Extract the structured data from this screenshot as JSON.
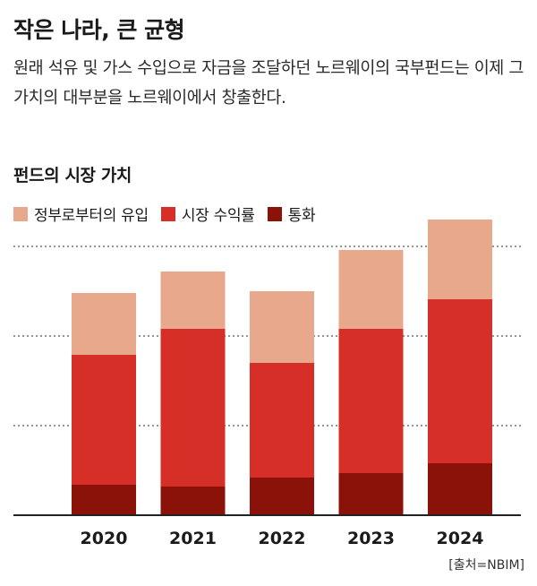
{
  "header": {
    "title": "작은 나라, 큰 균형",
    "subtitle": "원래 석유 및 가스 수입으로 자금을 조달하던 노르웨이의 국부펀드는 이제 그 가치의 대부분을 노르웨이에서 창출한다."
  },
  "chart_data": {
    "type": "bar",
    "stacked": true,
    "title": "펀드의 시장 가치",
    "categories": [
      "2020",
      "2021",
      "2022",
      "2023",
      "2024"
    ],
    "series": [
      {
        "name": "통화",
        "color": "#8b1209",
        "values": [
          34,
          32,
          42,
          47,
          58
        ]
      },
      {
        "name": "시장 수익률",
        "color": "#d62f27",
        "values": [
          145,
          176,
          128,
          161,
          183
        ]
      },
      {
        "name": "정부로부터의 유입",
        "color": "#e8a88c",
        "values": [
          69,
          64,
          80,
          88,
          89
        ]
      }
    ],
    "ylim": [
      0,
      330
    ],
    "gridlines": [
      100,
      200,
      300
    ],
    "grid": true,
    "legend_position": "top-left",
    "source": "[출처=NBIM]"
  }
}
